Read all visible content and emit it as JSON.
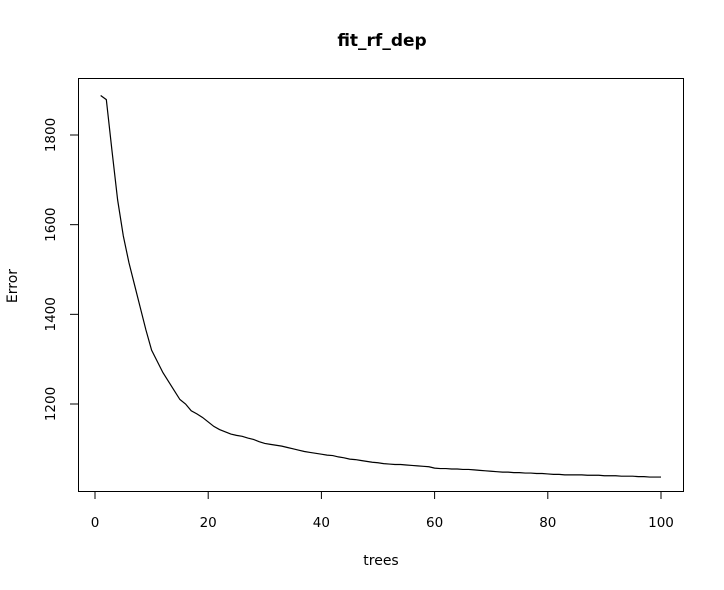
{
  "chart_data": {
    "type": "line",
    "title": "fit_rf_dep",
    "xlabel": "trees",
    "ylabel": "Error",
    "xlim": [
      0,
      100
    ],
    "ylim": [
      1025,
      1900
    ],
    "x_ticks": [
      0,
      20,
      40,
      60,
      80,
      100
    ],
    "y_ticks": [
      1200,
      1400,
      1600,
      1800
    ],
    "grid": false,
    "series": [
      {
        "x": [
          1,
          2,
          3,
          4,
          5,
          6,
          7,
          8,
          9,
          10,
          11,
          12,
          13,
          14,
          15,
          16,
          17,
          18,
          19,
          20,
          21,
          22,
          23,
          24,
          25,
          26,
          27,
          28,
          29,
          30,
          31,
          32,
          33,
          34,
          35,
          36,
          37,
          38,
          39,
          40,
          41,
          42,
          43,
          44,
          45,
          46,
          47,
          48,
          49,
          50,
          51,
          52,
          53,
          54,
          55,
          56,
          57,
          58,
          59,
          60,
          61,
          62,
          63,
          64,
          65,
          66,
          67,
          68,
          69,
          70,
          71,
          72,
          73,
          74,
          75,
          76,
          77,
          78,
          79,
          80,
          81,
          82,
          83,
          84,
          85,
          86,
          87,
          88,
          89,
          90,
          91,
          92,
          93,
          94,
          95,
          96,
          97,
          98,
          99,
          100
        ],
        "values": [
          1888,
          1879,
          1765,
          1655,
          1575,
          1515,
          1465,
          1415,
          1365,
          1320,
          1295,
          1270,
          1250,
          1230,
          1210,
          1200,
          1185,
          1178,
          1170,
          1160,
          1150,
          1143,
          1138,
          1133,
          1130,
          1128,
          1124,
          1121,
          1116,
          1112,
          1110,
          1108,
          1106,
          1103,
          1100,
          1097,
          1094,
          1092,
          1090,
          1088,
          1086,
          1085,
          1082,
          1080,
          1077,
          1076,
          1074,
          1072,
          1070,
          1069,
          1067,
          1066,
          1065,
          1065,
          1064,
          1063,
          1062,
          1061,
          1060,
          1057,
          1056,
          1056,
          1055,
          1055,
          1054,
          1054,
          1053,
          1052,
          1051,
          1050,
          1049,
          1048,
          1048,
          1047,
          1047,
          1046,
          1046,
          1045,
          1045,
          1044,
          1043,
          1043,
          1042,
          1042,
          1042,
          1042,
          1041,
          1041,
          1041,
          1040,
          1040,
          1040,
          1039,
          1039,
          1039,
          1038,
          1038,
          1037,
          1037,
          1037
        ]
      }
    ]
  }
}
